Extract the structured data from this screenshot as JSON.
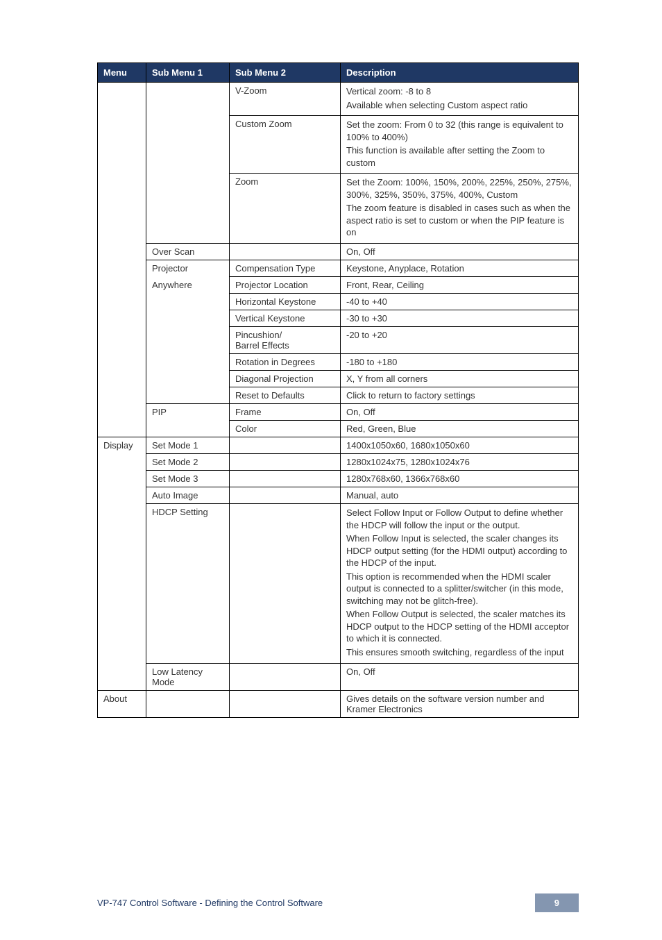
{
  "headers": {
    "menu": "Menu",
    "sub1": "Sub Menu 1",
    "sub2": "Sub Menu 2",
    "desc": "Description"
  },
  "rows": {
    "vzoom_sub2": "V-Zoom",
    "vzoom_desc_l1": "Vertical zoom: -8 to 8",
    "vzoom_desc_l2": "Available when selecting Custom aspect ratio",
    "custzoom_sub2": "Custom Zoom",
    "custzoom_desc_l1": "Set the zoom: From 0 to 32 (this range is equivalent to 100% to 400%)",
    "custzoom_desc_l2": "This function is available after setting the Zoom to custom",
    "zoom_sub2": "Zoom",
    "zoom_desc_l1": "Set the Zoom: 100%, 150%, 200%, 225%, 250%, 275%, 300%, 325%, 350%, 375%, 400%, Custom",
    "zoom_desc_l2": "The zoom feature is disabled in cases such as when the aspect ratio is set to custom or when the PIP feature is on",
    "overscan_sub1": "Over Scan",
    "overscan_desc": "On, Off",
    "proj_sub1_l1": "Projector",
    "proj_sub1_l2": "Anywhere",
    "comptype_sub2": "Compensation Type",
    "comptype_desc": "Keystone, Anyplace, Rotation",
    "projloc_sub2": "Projector Location",
    "projloc_desc": "Front, Rear, Ceiling",
    "hkey_sub2": "Horizontal Keystone",
    "hkey_desc": "-40 to +40",
    "vkey_sub2": "Vertical Keystone",
    "vkey_desc": "-30 to +30",
    "pin_sub2_l1": "Pincushion/",
    "pin_sub2_l2": "Barrel Effects",
    "pin_desc": "-20 to +20",
    "rot_sub2": "Rotation in Degrees",
    "rot_desc": "-180 to +180",
    "diag_sub2": "Diagonal Projection",
    "diag_desc": "X, Y from all corners",
    "reset_sub2": "Reset to Defaults",
    "reset_desc": "Click to return to factory settings",
    "pip_sub1": "PIP",
    "frame_sub2": "Frame",
    "frame_desc": "On, Off",
    "color_sub2": "Color",
    "color_desc": "Red, Green, Blue",
    "display_menu": "Display",
    "sm1_sub1": "Set Mode 1",
    "sm1_desc": "1400x1050x60, 1680x1050x60",
    "sm2_sub1": "Set Mode 2",
    "sm2_desc": "1280x1024x75, 1280x1024x76",
    "sm3_sub1": "Set Mode 3",
    "sm3_desc": "1280x768x60, 1366x768x60",
    "auto_sub1": "Auto Image",
    "auto_desc": "Manual, auto",
    "hdcp_sub1": "HDCP Setting",
    "hdcp_desc_l1": "Select Follow Input or Follow Output to define whether the HDCP will follow the input or the output.",
    "hdcp_desc_l2": "When Follow Input is selected, the scaler changes its HDCP output setting (for the HDMI output) according to the HDCP of the input.",
    "hdcp_desc_l3": "This option is recommended when the HDMI scaler output is connected to a splitter/switcher (in this mode, switching may not be glitch-free).",
    "hdcp_desc_l4": "When Follow Output is selected, the scaler matches its HDCP output to the HDCP setting of the HDMI acceptor to which it is connected.",
    "hdcp_desc_l5": "This ensures smooth switching, regardless of the input",
    "low_sub1_l1": "Low Latency",
    "low_sub1_l2": "Mode",
    "low_desc": "On, Off",
    "about_menu": "About",
    "about_desc": "Gives details on the software version number and Kramer Electronics"
  },
  "footer": {
    "text": "VP-747 Control Software - Defining the Control Software",
    "page": "9"
  },
  "colors": {
    "header_bg": "#1f3864",
    "header_fg": "#ffffff",
    "border": "#000000",
    "body_text": "#333333",
    "footer_text": "#1f3864",
    "badge_bg": "#8496b0",
    "badge_fg": "#ffffff"
  },
  "fontsize": {
    "table": 13,
    "footer": 13
  }
}
